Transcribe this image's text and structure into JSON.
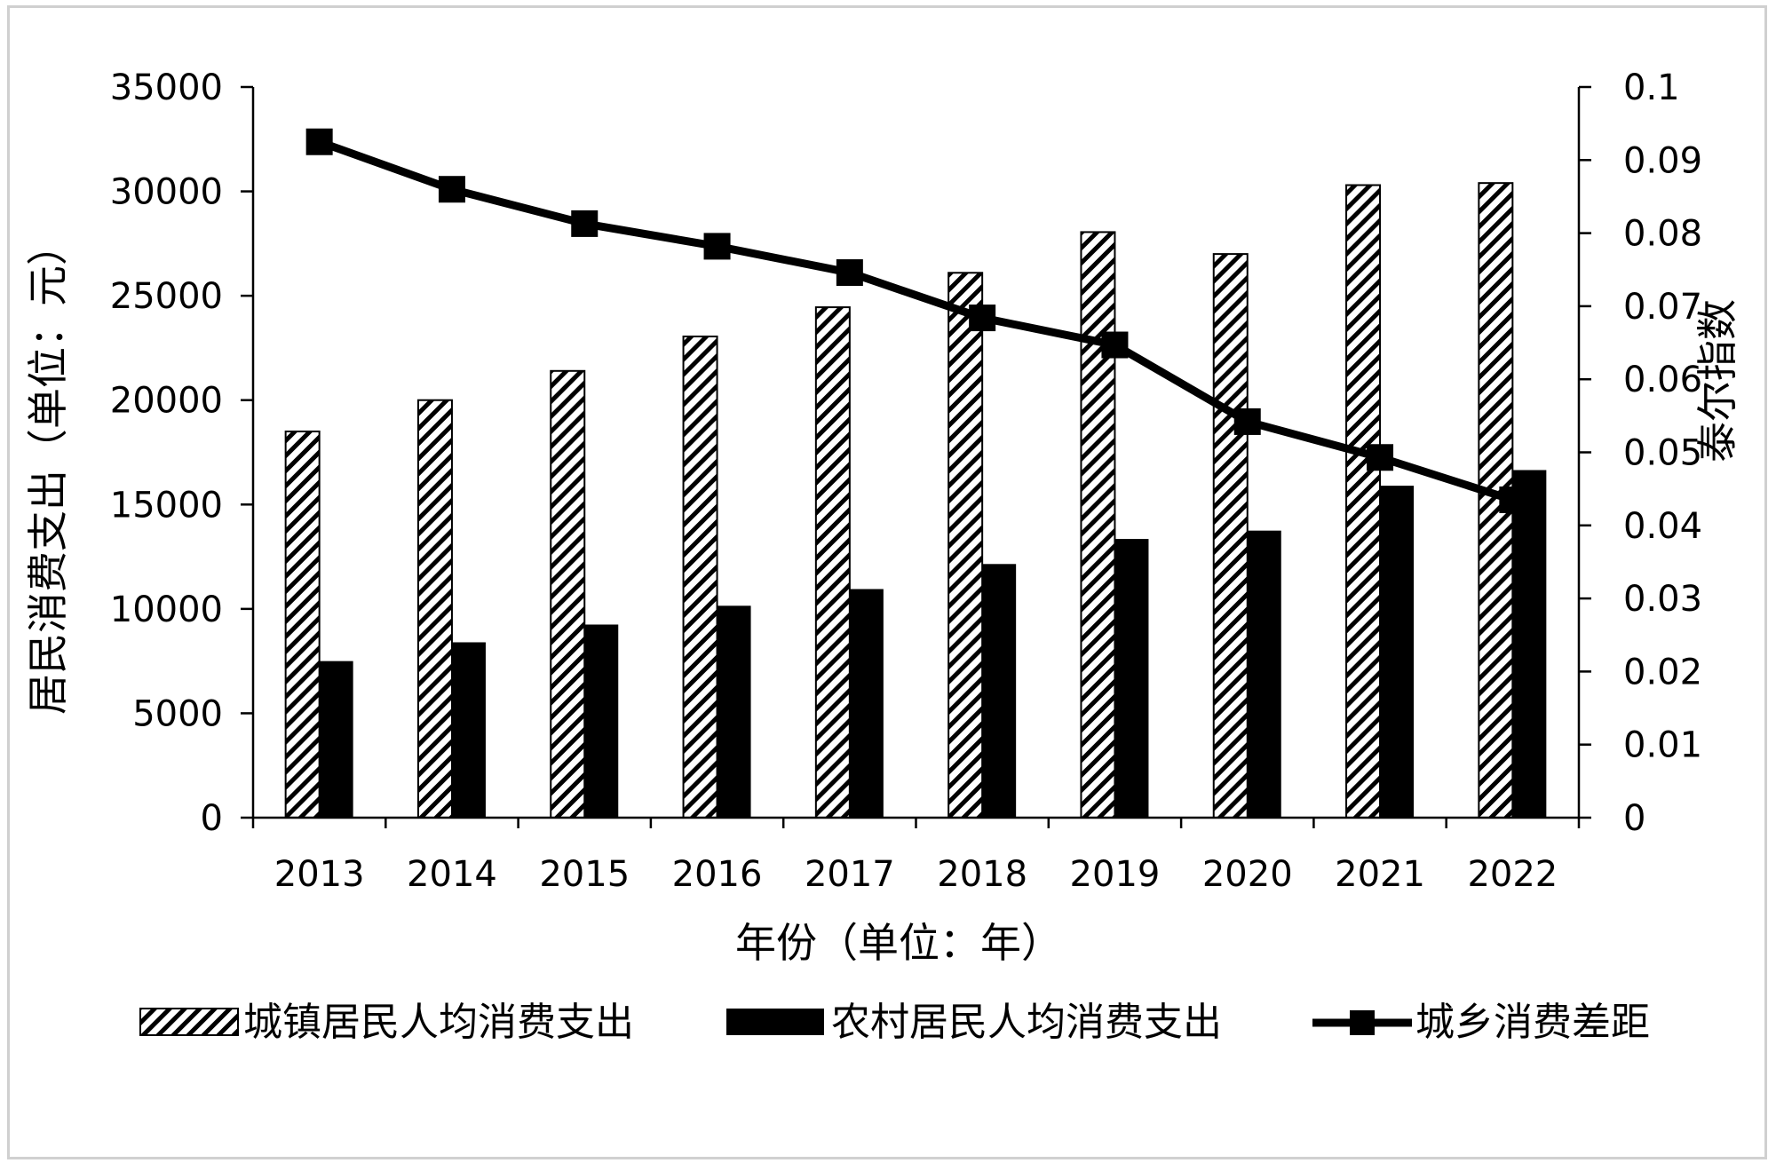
{
  "chart_data": {
    "type": "bar",
    "categories": [
      "2013",
      "2014",
      "2015",
      "2016",
      "2017",
      "2018",
      "2019",
      "2020",
      "2021",
      "2022"
    ],
    "series": [
      {
        "name": "城镇居民人均消费支出",
        "kind": "bar",
        "pattern": "diagonal-hatch",
        "axis": "left",
        "values": [
          18500,
          20000,
          21400,
          23050,
          24450,
          26100,
          28050,
          27000,
          30300,
          30400
        ]
      },
      {
        "name": "农村居民人均消费支出",
        "kind": "bar",
        "pattern": "solid-black",
        "axis": "left",
        "values": [
          7500,
          8400,
          9250,
          10150,
          10950,
          12150,
          13350,
          13750,
          15900,
          16650
        ]
      },
      {
        "name": "城乡消费差距",
        "kind": "line",
        "marker": "square",
        "axis": "right",
        "values": [
          0.0925,
          0.086,
          0.0813,
          0.0782,
          0.0746,
          0.0684,
          0.0647,
          0.0542,
          0.0493,
          0.0435
        ]
      }
    ],
    "xlabel": "年份（单位：年）",
    "ylabel": "居民消费支出（单位：元）",
    "y2label": "泰尔指数",
    "ylim": [
      0,
      35000
    ],
    "y2lim": [
      0,
      0.1
    ],
    "yticks": [
      "0",
      "5000",
      "10000",
      "15000",
      "20000",
      "25000",
      "30000",
      "35000"
    ],
    "y2ticks": [
      "0",
      "0.01",
      "0.02",
      "0.03",
      "0.04",
      "0.05",
      "0.06",
      "0.07",
      "0.08",
      "0.09",
      "0.1"
    ],
    "grid": false,
    "legend_position": "bottom",
    "colors": {
      "bar_dark": "#000000",
      "hatch": "#000000",
      "line": "#000000",
      "background": "#ffffff"
    }
  }
}
